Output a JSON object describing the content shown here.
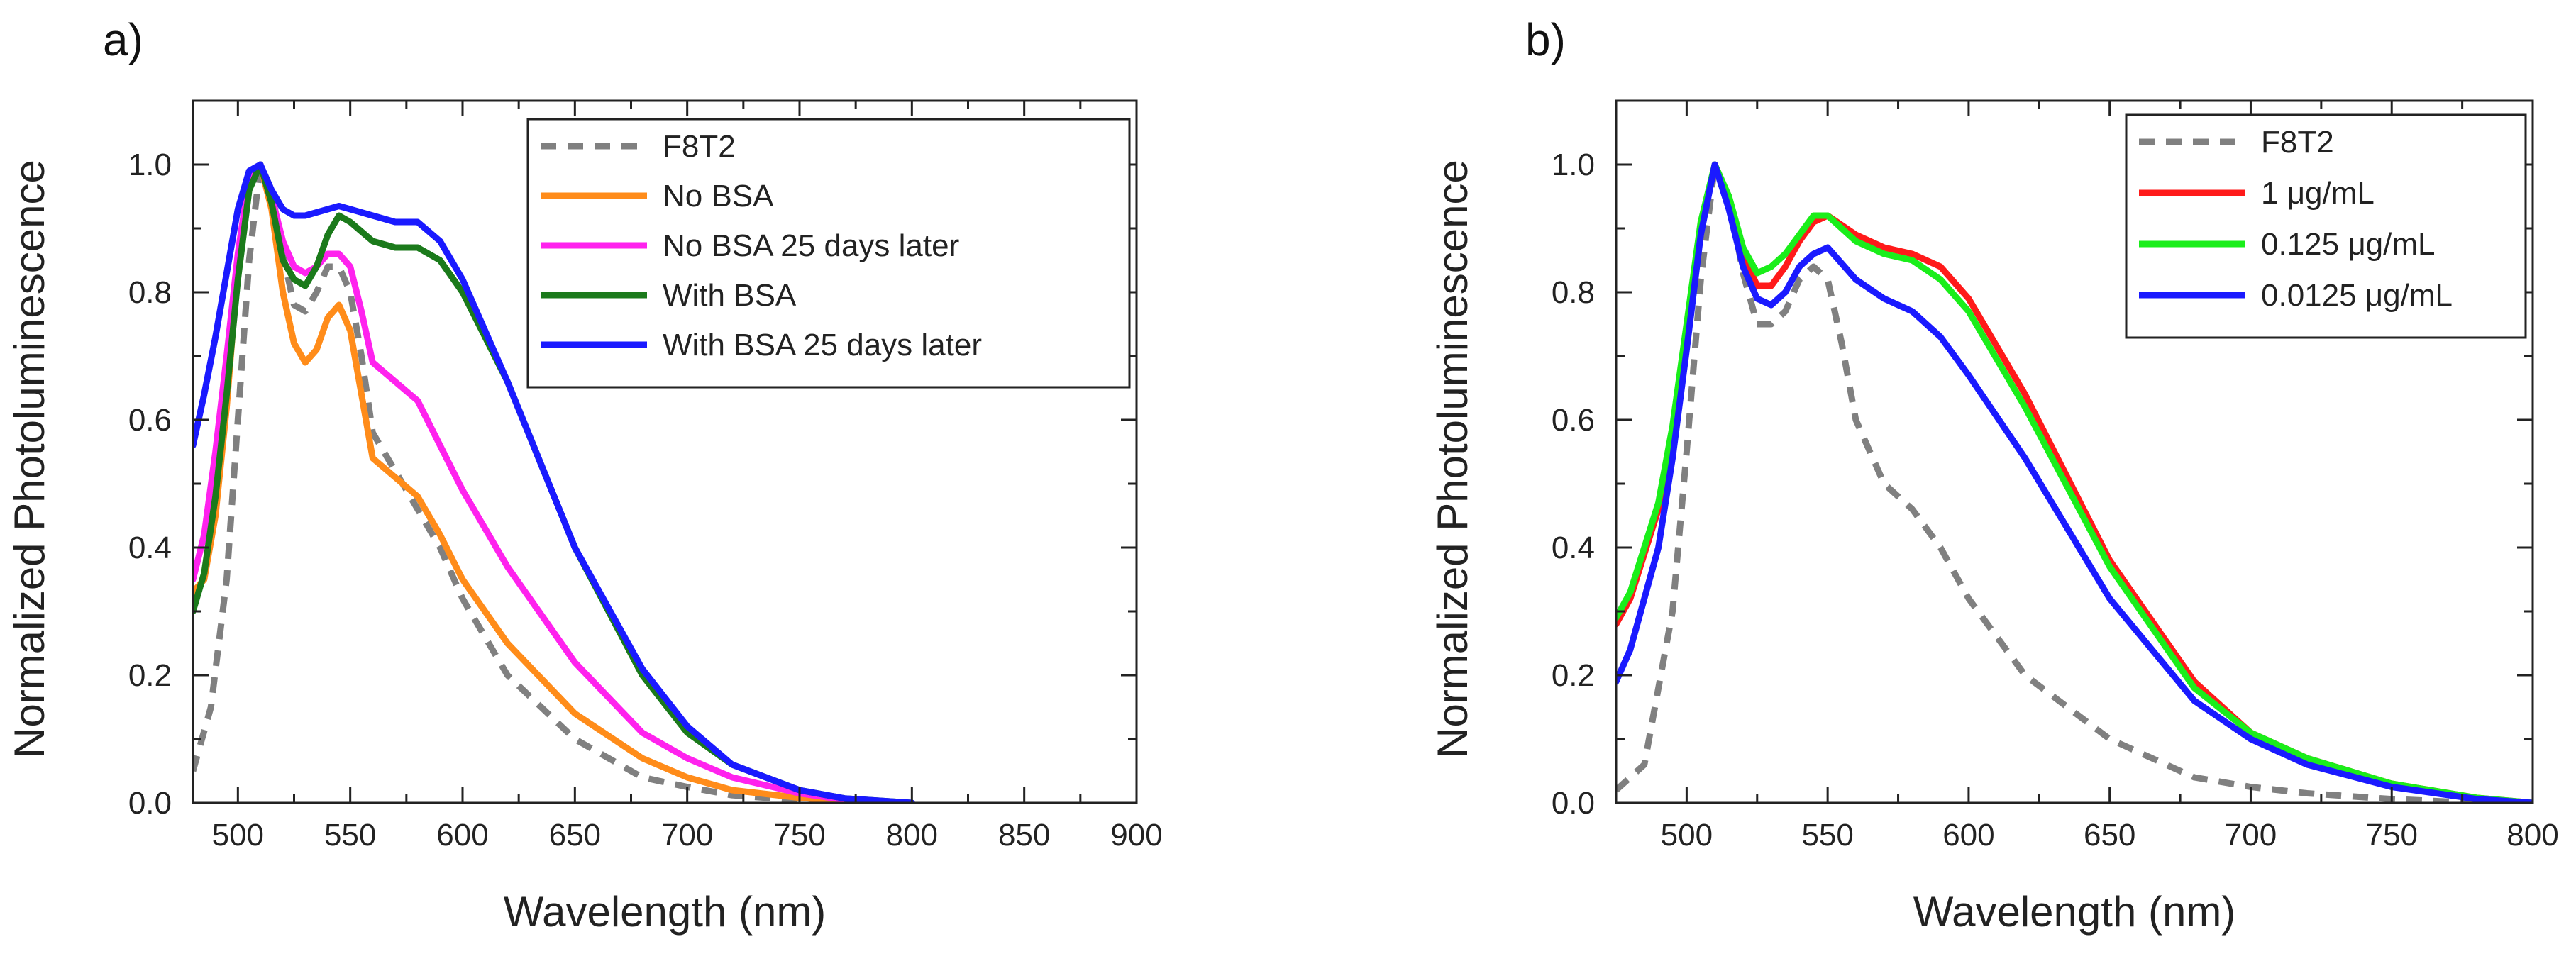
{
  "figure": {
    "panels": [
      {
        "label": "a)"
      },
      {
        "label": "b)"
      }
    ]
  },
  "chart_data": [
    {
      "type": "line",
      "panel": "a)",
      "title": "",
      "xlabel": "Wavelength (nm)",
      "ylabel": "Normalized Photoluminescence",
      "xlim": [
        480,
        900
      ],
      "ylim": [
        0,
        1.1
      ],
      "xticks": [
        500,
        550,
        600,
        650,
        700,
        750,
        800,
        850,
        900
      ],
      "yticks": [
        0.0,
        0.2,
        0.4,
        0.6,
        0.8,
        1.0
      ],
      "ytick_labels": [
        "0.0",
        "0.2",
        "0.4",
        "0.6",
        "0.8",
        "1.0"
      ],
      "legend_position": "top-right",
      "series": [
        {
          "name": "F8T2",
          "color": "#808080",
          "dash": "dashed",
          "x": [
            480,
            488,
            495,
            500,
            505,
            510,
            515,
            520,
            525,
            530,
            535,
            540,
            545,
            550,
            555,
            560,
            570,
            580,
            590,
            600,
            620,
            650,
            680,
            700,
            720,
            750,
            770
          ],
          "y": [
            0.05,
            0.15,
            0.35,
            0.6,
            0.85,
            1.0,
            0.96,
            0.86,
            0.78,
            0.77,
            0.8,
            0.84,
            0.84,
            0.8,
            0.7,
            0.58,
            0.52,
            0.46,
            0.4,
            0.32,
            0.2,
            0.1,
            0.04,
            0.025,
            0.012,
            0.004,
            0.0
          ]
        },
        {
          "name": "No BSA",
          "color": "#FF8C1A",
          "dash": "solid",
          "x": [
            480,
            485,
            490,
            495,
            500,
            505,
            510,
            515,
            520,
            525,
            530,
            535,
            540,
            545,
            550,
            555,
            560,
            570,
            580,
            590,
            600,
            620,
            650,
            680,
            700,
            720,
            750,
            770,
            790
          ],
          "y": [
            0.33,
            0.35,
            0.45,
            0.62,
            0.84,
            0.98,
            1.0,
            0.93,
            0.8,
            0.72,
            0.69,
            0.71,
            0.76,
            0.78,
            0.74,
            0.64,
            0.54,
            0.51,
            0.48,
            0.42,
            0.35,
            0.25,
            0.14,
            0.07,
            0.04,
            0.02,
            0.008,
            0.003,
            0.0
          ]
        },
        {
          "name": "No BSA 25 days later",
          "color": "#FF22EE",
          "dash": "solid",
          "x": [
            480,
            485,
            490,
            495,
            500,
            505,
            510,
            515,
            520,
            525,
            530,
            535,
            540,
            545,
            550,
            555,
            560,
            570,
            580,
            590,
            600,
            620,
            650,
            680,
            700,
            720,
            750,
            770,
            790
          ],
          "y": [
            0.35,
            0.42,
            0.55,
            0.7,
            0.86,
            0.98,
            1.0,
            0.95,
            0.88,
            0.84,
            0.83,
            0.84,
            0.86,
            0.86,
            0.84,
            0.77,
            0.69,
            0.66,
            0.63,
            0.56,
            0.49,
            0.37,
            0.22,
            0.11,
            0.07,
            0.04,
            0.015,
            0.005,
            0.0
          ]
        },
        {
          "name": "With BSA",
          "color": "#1B7A1B",
          "dash": "solid",
          "x": [
            480,
            485,
            490,
            495,
            500,
            505,
            510,
            515,
            520,
            525,
            530,
            535,
            540,
            545,
            550,
            560,
            570,
            580,
            590,
            600,
            620,
            650,
            680,
            700,
            720,
            750,
            770,
            800
          ],
          "y": [
            0.3,
            0.36,
            0.48,
            0.64,
            0.82,
            0.96,
            1.0,
            0.94,
            0.85,
            0.82,
            0.81,
            0.84,
            0.89,
            0.92,
            0.91,
            0.88,
            0.87,
            0.87,
            0.85,
            0.8,
            0.66,
            0.4,
            0.2,
            0.11,
            0.06,
            0.02,
            0.007,
            0.0
          ]
        },
        {
          "name": "With BSA 25 days later",
          "color": "#1A1AFF",
          "dash": "solid",
          "x": [
            480,
            485,
            490,
            495,
            500,
            505,
            510,
            515,
            520,
            525,
            530,
            540,
            545,
            550,
            560,
            570,
            580,
            590,
            600,
            620,
            650,
            680,
            700,
            720,
            750,
            770,
            800
          ],
          "y": [
            0.56,
            0.64,
            0.73,
            0.83,
            0.93,
            0.99,
            1.0,
            0.96,
            0.93,
            0.92,
            0.92,
            0.93,
            0.935,
            0.93,
            0.92,
            0.91,
            0.91,
            0.88,
            0.82,
            0.66,
            0.4,
            0.21,
            0.12,
            0.06,
            0.02,
            0.007,
            0.0
          ]
        }
      ]
    },
    {
      "type": "line",
      "panel": "b)",
      "title": "",
      "xlabel": "Wavelength (nm)",
      "ylabel": "Normalized Photoluminescence",
      "xlim": [
        475,
        800
      ],
      "ylim": [
        0,
        1.1
      ],
      "xticks": [
        500,
        550,
        600,
        650,
        700,
        750,
        800
      ],
      "yticks": [
        0.0,
        0.2,
        0.4,
        0.6,
        0.8,
        1.0
      ],
      "ytick_labels": [
        "0.0",
        "0.2",
        "0.4",
        "0.6",
        "0.8",
        "1.0"
      ],
      "legend_position": "top-right",
      "series": [
        {
          "name": "F8T2",
          "color": "#808080",
          "dash": "dashed",
          "x": [
            475,
            485,
            495,
            500,
            505,
            510,
            515,
            520,
            525,
            530,
            535,
            540,
            545,
            550,
            555,
            560,
            570,
            580,
            590,
            600,
            620,
            650,
            680,
            700,
            720,
            750,
            770,
            780
          ],
          "y": [
            0.02,
            0.06,
            0.3,
            0.55,
            0.82,
            1.0,
            0.95,
            0.83,
            0.75,
            0.75,
            0.77,
            0.82,
            0.84,
            0.82,
            0.72,
            0.6,
            0.5,
            0.46,
            0.4,
            0.32,
            0.2,
            0.1,
            0.04,
            0.025,
            0.015,
            0.006,
            0.002,
            0.0
          ]
        },
        {
          "name": "1 μg/mL",
          "color": "#FF1A1A",
          "dash": "solid",
          "x": [
            475,
            480,
            490,
            495,
            500,
            505,
            510,
            515,
            520,
            525,
            530,
            535,
            540,
            545,
            550,
            560,
            570,
            580,
            590,
            600,
            620,
            650,
            680,
            700,
            720,
            750,
            780,
            800
          ],
          "y": [
            0.28,
            0.32,
            0.46,
            0.58,
            0.74,
            0.9,
            1.0,
            0.94,
            0.86,
            0.81,
            0.81,
            0.84,
            0.88,
            0.91,
            0.92,
            0.89,
            0.87,
            0.86,
            0.84,
            0.79,
            0.64,
            0.38,
            0.19,
            0.11,
            0.07,
            0.03,
            0.008,
            0.0
          ]
        },
        {
          "name": "0.125 μg/mL",
          "color": "#1AEE1A",
          "dash": "solid",
          "x": [
            475,
            480,
            490,
            495,
            500,
            505,
            510,
            515,
            520,
            525,
            530,
            535,
            540,
            545,
            550,
            560,
            570,
            580,
            590,
            600,
            620,
            650,
            680,
            700,
            720,
            750,
            780,
            800
          ],
          "y": [
            0.29,
            0.33,
            0.47,
            0.59,
            0.75,
            0.91,
            1.0,
            0.95,
            0.87,
            0.83,
            0.84,
            0.86,
            0.89,
            0.92,
            0.92,
            0.88,
            0.86,
            0.85,
            0.82,
            0.77,
            0.62,
            0.37,
            0.18,
            0.11,
            0.07,
            0.03,
            0.008,
            0.0
          ]
        },
        {
          "name": "0.0125 μg/mL",
          "color": "#1A1AFF",
          "dash": "solid",
          "x": [
            475,
            480,
            490,
            495,
            500,
            505,
            510,
            515,
            520,
            525,
            530,
            535,
            540,
            545,
            550,
            560,
            570,
            580,
            590,
            600,
            620,
            650,
            680,
            700,
            720,
            750,
            780,
            800
          ],
          "y": [
            0.19,
            0.24,
            0.4,
            0.54,
            0.71,
            0.89,
            1.0,
            0.93,
            0.84,
            0.79,
            0.78,
            0.8,
            0.84,
            0.86,
            0.87,
            0.82,
            0.79,
            0.77,
            0.73,
            0.67,
            0.54,
            0.32,
            0.16,
            0.1,
            0.06,
            0.025,
            0.006,
            0.0
          ]
        }
      ]
    }
  ]
}
